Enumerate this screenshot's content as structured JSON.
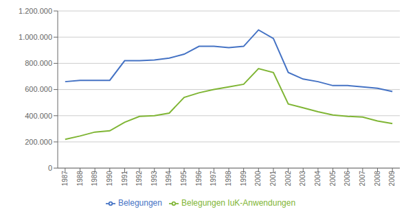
{
  "chart_data": {
    "type": "line",
    "x": [
      1987,
      1988,
      1989,
      1990,
      1991,
      1992,
      1993,
      1994,
      1995,
      1996,
      1997,
      1998,
      1999,
      2000,
      2001,
      2002,
      2003,
      2004,
      2005,
      2006,
      2007,
      2008,
      2009
    ],
    "xlim": [
      1986.5,
      2009.5
    ],
    "xticks": [
      1987,
      1988,
      1989,
      1990,
      1991,
      1992,
      1993,
      1994,
      1995,
      1996,
      1997,
      1998,
      1999,
      2000,
      2001,
      2002,
      2003,
      2004,
      2005,
      2006,
      2007,
      2008,
      2009
    ],
    "series": [
      {
        "name": "Belegungen IuK-Anwendungen",
        "color": "#7FB534",
        "values": [
          220000,
          245000,
          275000,
          285000,
          350000,
          395000,
          400000,
          420000,
          540000,
          575000,
          600000,
          620000,
          640000,
          760000,
          730000,
          490000,
          460000,
          430000,
          405000,
          395000,
          390000,
          360000,
          340000
        ]
      },
      {
        "name": "Belegungen",
        "color": "#4472C4",
        "values": [
          660000,
          670000,
          670000,
          670000,
          820000,
          820000,
          825000,
          840000,
          870000,
          930000,
          930000,
          920000,
          930000,
          1055000,
          990000,
          730000,
          680000,
          660000,
          630000,
          630000,
          620000,
          610000,
          585000
        ]
      }
    ],
    "ylim": [
      0,
      1200000
    ],
    "yticks": [
      0,
      {
        "value": 200000,
        "label": "200.000"
      },
      {
        "value": 400000,
        "label": "400.000"
      },
      {
        "value": 600000,
        "label": "600.000"
      },
      {
        "value": 800000,
        "label": "800.000"
      },
      {
        "value": 1000000,
        "label": "1.000.000"
      },
      {
        "value": 1200000,
        "label": "1.200.000"
      }
    ],
    "grid": "y",
    "legend": "bottom"
  }
}
